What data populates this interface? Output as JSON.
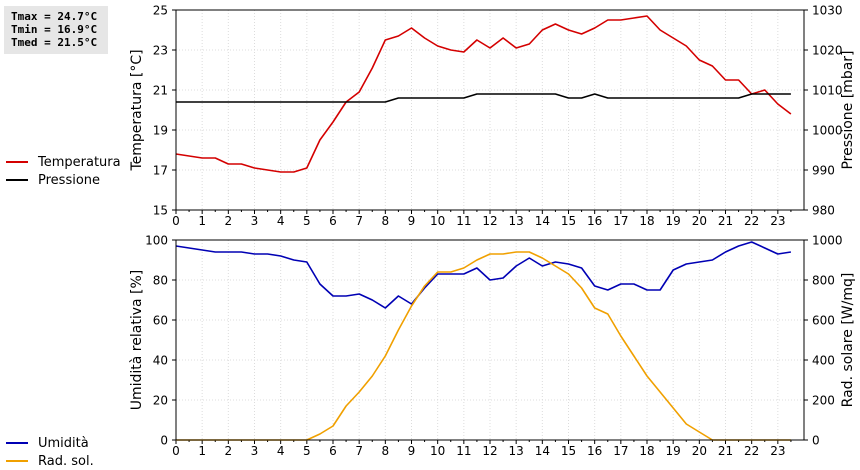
{
  "stats": {
    "tmax": "Tmax = 24.7°C",
    "tmin": "Tmin = 16.9°C",
    "tmed": "Tmed = 21.5°C"
  },
  "colors": {
    "temperatura": "#d40000",
    "pressione": "#000000",
    "umidita": "#0000b4",
    "radsol": "#f0a000"
  },
  "legend_top": [
    {
      "label": "Temperatura",
      "color": "#d40000"
    },
    {
      "label": "Pressione",
      "color": "#000000"
    }
  ],
  "legend_bottom": [
    {
      "label": "Umidità",
      "color": "#0000b4"
    },
    {
      "label": "Rad. sol.",
      "color": "#f0a000"
    }
  ],
  "chart_data": [
    {
      "type": "line",
      "ylabel": "Temperatura [°C]",
      "y2label": "Pressione [mbar]",
      "xlim": [
        0,
        24
      ],
      "xticks": [
        "0",
        "1",
        "2",
        "3",
        "4",
        "5",
        "6",
        "7",
        "8",
        "9",
        "10",
        "11",
        "12",
        "13",
        "14",
        "15",
        "16",
        "17",
        "18",
        "19",
        "20",
        "21",
        "22",
        "23"
      ],
      "ylim": [
        15,
        25
      ],
      "yticks": [
        "15",
        "17",
        "19",
        "21",
        "23",
        "25"
      ],
      "y2lim": [
        980,
        1030
      ],
      "y2ticks": [
        "980",
        "990",
        "1000",
        "1010",
        "1020",
        "1030"
      ],
      "grid": true,
      "series": [
        {
          "name": "Temperatura",
          "axis": "left",
          "x": [
            0,
            0.5,
            1,
            1.5,
            2,
            2.5,
            3,
            3.5,
            4,
            4.5,
            5,
            5.5,
            6,
            6.5,
            7,
            7.5,
            8,
            8.5,
            9,
            9.5,
            10,
            10.5,
            11,
            11.5,
            12,
            12.5,
            13,
            13.5,
            14,
            14.5,
            15,
            15.5,
            16,
            16.5,
            17,
            17.5,
            18,
            18.5,
            19,
            19.5,
            20,
            20.5,
            21,
            21.5,
            22,
            22.5,
            23,
            23.5
          ],
          "y": [
            17.8,
            17.7,
            17.6,
            17.6,
            17.3,
            17.3,
            17.1,
            17.0,
            16.9,
            16.9,
            17.1,
            18.5,
            19.4,
            20.4,
            20.9,
            22.1,
            23.5,
            23.7,
            24.1,
            23.6,
            23.2,
            23.0,
            22.9,
            23.5,
            23.1,
            23.6,
            23.1,
            23.3,
            24.0,
            24.3,
            24.0,
            23.8,
            24.1,
            24.5,
            24.5,
            24.6,
            24.7,
            24.0,
            23.6,
            23.2,
            22.5,
            22.2,
            21.5,
            21.5,
            20.8,
            21.0,
            20.3,
            19.8
          ]
        },
        {
          "name": "Pressione",
          "axis": "right",
          "x": [
            0,
            0.5,
            1,
            1.5,
            2,
            2.5,
            3,
            3.5,
            4,
            4.5,
            5,
            5.5,
            6,
            6.5,
            7,
            7.5,
            8,
            8.5,
            9,
            9.5,
            10,
            10.5,
            11,
            11.5,
            12,
            12.5,
            13,
            13.5,
            14,
            14.5,
            15,
            15.5,
            16,
            16.5,
            17,
            17.5,
            18,
            18.5,
            19,
            19.5,
            20,
            20.5,
            21,
            21.5,
            22,
            22.5,
            23,
            23.5
          ],
          "y": [
            1007,
            1007,
            1007,
            1007,
            1007,
            1007,
            1007,
            1007,
            1007,
            1007,
            1007,
            1007,
            1007,
            1007,
            1007,
            1007,
            1007,
            1008,
            1008,
            1008,
            1008,
            1008,
            1008,
            1009,
            1009,
            1009,
            1009,
            1009,
            1009,
            1009,
            1008,
            1008,
            1009,
            1008,
            1008,
            1008,
            1008,
            1008,
            1008,
            1008,
            1008,
            1008,
            1008,
            1008,
            1009,
            1009,
            1009,
            1009
          ]
        }
      ]
    },
    {
      "type": "line",
      "ylabel": "Umidità relativa [%]",
      "y2label": "Rad. solare [W/mq]",
      "xlim": [
        0,
        24
      ],
      "xticks": [
        "0",
        "1",
        "2",
        "3",
        "4",
        "5",
        "6",
        "7",
        "8",
        "9",
        "10",
        "11",
        "12",
        "13",
        "14",
        "15",
        "16",
        "17",
        "18",
        "19",
        "20",
        "21",
        "22",
        "23"
      ],
      "ylim": [
        0,
        100
      ],
      "yticks": [
        "0",
        "20",
        "40",
        "60",
        "80",
        "100"
      ],
      "y2lim": [
        0,
        1000
      ],
      "y2ticks": [
        "0",
        "200",
        "400",
        "600",
        "800",
        "1000"
      ],
      "grid": true,
      "series": [
        {
          "name": "Umidità",
          "axis": "left",
          "x": [
            0,
            0.5,
            1,
            1.5,
            2,
            2.5,
            3,
            3.5,
            4,
            4.5,
            5,
            5.5,
            6,
            6.5,
            7,
            7.5,
            8,
            8.5,
            9,
            9.5,
            10,
            10.5,
            11,
            11.5,
            12,
            12.5,
            13,
            13.5,
            14,
            14.5,
            15,
            15.5,
            16,
            16.5,
            17,
            17.5,
            18,
            18.5,
            19,
            19.5,
            20,
            20.5,
            21,
            21.5,
            22,
            22.5,
            23,
            23.5
          ],
          "y": [
            97,
            96,
            95,
            94,
            94,
            94,
            93,
            93,
            92,
            90,
            89,
            78,
            72,
            72,
            73,
            70,
            66,
            72,
            68,
            76,
            83,
            83,
            83,
            86,
            80,
            81,
            87,
            91,
            87,
            89,
            88,
            86,
            77,
            75,
            78,
            78,
            75,
            75,
            85,
            88,
            89,
            90,
            94,
            97,
            99,
            96,
            93,
            94
          ]
        },
        {
          "name": "Rad. sol.",
          "axis": "right",
          "x": [
            0,
            0.5,
            1,
            1.5,
            2,
            2.5,
            3,
            3.5,
            4,
            4.5,
            5,
            5.5,
            6,
            6.5,
            7,
            7.5,
            8,
            8.5,
            9,
            9.5,
            10,
            10.5,
            11,
            11.5,
            12,
            12.5,
            13,
            13.5,
            14,
            14.5,
            15,
            15.5,
            16,
            16.5,
            17,
            17.5,
            18,
            18.5,
            19,
            19.5,
            20,
            20.5,
            21,
            21.5,
            22,
            22.5,
            23,
            23.5
          ],
          "y": [
            0,
            0,
            0,
            0,
            0,
            0,
            0,
            0,
            0,
            0,
            0,
            30,
            70,
            170,
            240,
            320,
            420,
            550,
            670,
            770,
            840,
            840,
            860,
            900,
            930,
            930,
            940,
            940,
            910,
            870,
            830,
            760,
            660,
            630,
            520,
            420,
            320,
            240,
            160,
            80,
            40,
            0,
            0,
            0,
            0,
            0,
            0,
            0
          ]
        }
      ]
    }
  ]
}
